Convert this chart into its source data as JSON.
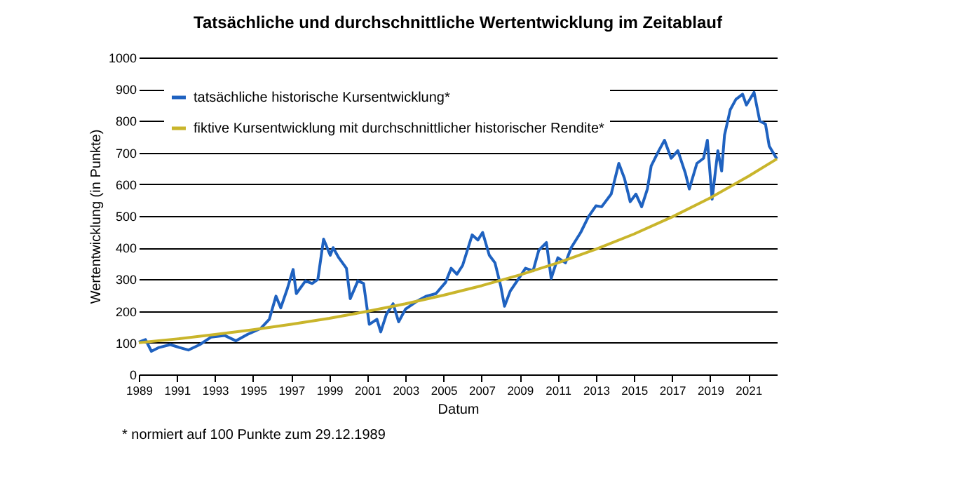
{
  "chart_data": {
    "type": "line",
    "title": "Tatsächliche und durchschnittliche Wertentwicklung im Zeitablauf",
    "xlabel": "Datum",
    "ylabel": "Wertentwicklung (in Punkte)",
    "annotations": [
      "* normiert auf 100 Punkte zum 29.12.1989"
    ],
    "xlim": [
      1989,
      2022.5
    ],
    "xticks": [
      1989,
      1991,
      1993,
      1995,
      1997,
      1999,
      2001,
      2003,
      2005,
      2007,
      2009,
      2011,
      2013,
      2015,
      2017,
      2019,
      2021
    ],
    "ylim": [
      0,
      1000
    ],
    "yticks": [
      0,
      100,
      200,
      300,
      400,
      500,
      600,
      700,
      800,
      900,
      1000
    ],
    "grid": "y",
    "legend": "top left",
    "line_style": "solid",
    "marker": "none",
    "series": [
      {
        "name": "tatsächliche historische Kursentwicklung*",
        "color": "#1f62c0",
        "x": [
          1989.0,
          1989.35,
          1989.66,
          1990.06,
          1990.65,
          1991.13,
          1991.6,
          1992.2,
          1992.8,
          1993.5,
          1994.1,
          1994.7,
          1995.4,
          1995.85,
          1996.2,
          1996.45,
          1996.8,
          1997.1,
          1997.27,
          1997.75,
          1998.1,
          1998.4,
          1998.7,
          1999.05,
          1999.2,
          1999.5,
          1999.9,
          2000.1,
          2000.5,
          2000.8,
          2001.1,
          2001.5,
          2001.7,
          2002.0,
          2002.35,
          2002.64,
          2003.0,
          2003.6,
          2004.1,
          2004.6,
          2005.1,
          2005.4,
          2005.7,
          2006.0,
          2006.5,
          2006.8,
          2007.05,
          2007.4,
          2007.7,
          2008.0,
          2008.2,
          2008.5,
          2008.95,
          2009.3,
          2009.7,
          2010.0,
          2010.4,
          2010.65,
          2011.0,
          2011.4,
          2011.7,
          2012.2,
          2012.6,
          2013.0,
          2013.3,
          2013.8,
          2014.2,
          2014.5,
          2014.8,
          2015.1,
          2015.4,
          2015.7,
          2015.9,
          2016.3,
          2016.6,
          2016.95,
          2017.3,
          2017.7,
          2017.9,
          2018.3,
          2018.65,
          2018.85,
          2019.1,
          2019.4,
          2019.6,
          2019.75,
          2020.05,
          2020.35,
          2020.7,
          2020.9,
          2021.3,
          2021.6,
          2021.9,
          2022.1,
          2022.3,
          2022.5
        ],
        "values": [
          102,
          110,
          73,
          85,
          94,
          85,
          77,
          94,
          118,
          123,
          106,
          126,
          145,
          174,
          247,
          210,
          271,
          331,
          255,
          295,
          287,
          300,
          427,
          376,
          400,
          368,
          335,
          239,
          295,
          287,
          158,
          174,
          134,
          190,
          223,
          166,
          206,
          231,
          247,
          255,
          290,
          335,
          316,
          344,
          440,
          424,
          448,
          376,
          352,
          279,
          215,
          263,
          303,
          335,
          327,
          392,
          416,
          303,
          368,
          352,
          400,
          448,
          497,
          532,
          529,
          569,
          666,
          618,
          545,
          569,
          529,
          585,
          658,
          706,
          739,
          682,
          706,
          634,
          585,
          666,
          682,
          739,
          553,
          706,
          642,
          755,
          835,
          868,
          884,
          850,
          890,
          800,
          790,
          720,
          700,
          680
        ]
      },
      {
        "name": "fiktive Kursentwicklung mit durchschnittlicher historischer Rendite*",
        "color": "#c9b52b",
        "x": [
          1989,
          1991,
          1993,
          1995,
          1997,
          1999,
          2001,
          2003,
          2005,
          2007,
          2009,
          2011,
          2013,
          2015,
          2017,
          2019,
          2021,
          2022.5
        ],
        "values": [
          100,
          112,
          126,
          141,
          158,
          177,
          199,
          223,
          250,
          280,
          314,
          352,
          395,
          443,
          497,
          557,
          625,
          680
        ]
      }
    ]
  }
}
